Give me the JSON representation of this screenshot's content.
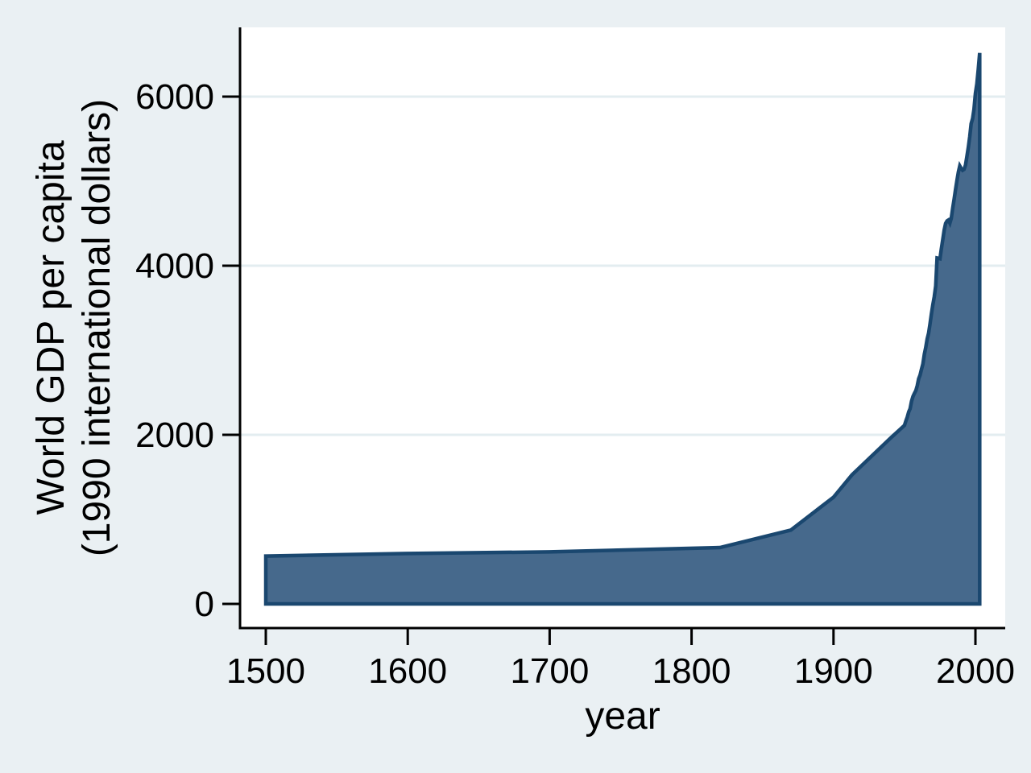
{
  "figure": {
    "background_color": "#eaf0f3",
    "plot_background_color": "#ffffff",
    "gridline_color": "#e3edf0",
    "axis_color": "#000000",
    "area_fill_color": "#46698c",
    "area_line_color": "#1a476f"
  },
  "chart_data": {
    "type": "area",
    "title": "",
    "xlabel": "year",
    "ylabel_lines": [
      "World GDP per capita",
      "(1990 international dollars)"
    ],
    "x_ticks": [
      1500,
      1600,
      1700,
      1800,
      1900,
      2000
    ],
    "y_ticks": [
      0,
      2000,
      4000,
      6000
    ],
    "xlim": [
      1482,
      2021
    ],
    "ylim": [
      -286,
      6819
    ],
    "grid": "horizontal-at-y-ticks",
    "legend": "none",
    "series": [
      {
        "name": "World GDP per capita (1990 international dollars)",
        "points": [
          [
            1500,
            566
          ],
          [
            1600,
            596
          ],
          [
            1700,
            615
          ],
          [
            1820,
            667
          ],
          [
            1870,
            873
          ],
          [
            1900,
            1262
          ],
          [
            1913,
            1526
          ],
          [
            1940,
            1958
          ],
          [
            1950,
            2111
          ],
          [
            1951,
            2165
          ],
          [
            1952,
            2210
          ],
          [
            1953,
            2271
          ],
          [
            1954,
            2309
          ],
          [
            1955,
            2397
          ],
          [
            1956,
            2454
          ],
          [
            1957,
            2490
          ],
          [
            1958,
            2522
          ],
          [
            1959,
            2581
          ],
          [
            1960,
            2662
          ],
          [
            1961,
            2707
          ],
          [
            1962,
            2773
          ],
          [
            1963,
            2838
          ],
          [
            1964,
            2953
          ],
          [
            1965,
            3031
          ],
          [
            1966,
            3133
          ],
          [
            1967,
            3203
          ],
          [
            1968,
            3310
          ],
          [
            1969,
            3432
          ],
          [
            1970,
            3536
          ],
          [
            1971,
            3632
          ],
          [
            1972,
            3760
          ],
          [
            1973,
            4091
          ],
          [
            1974,
            4088
          ],
          [
            1975,
            4083
          ],
          [
            1976,
            4200
          ],
          [
            1977,
            4310
          ],
          [
            1978,
            4420
          ],
          [
            1979,
            4500
          ],
          [
            1980,
            4530
          ],
          [
            1981,
            4540
          ],
          [
            1982,
            4505
          ],
          [
            1983,
            4560
          ],
          [
            1984,
            4680
          ],
          [
            1985,
            4790
          ],
          [
            1986,
            4900
          ],
          [
            1987,
            5010
          ],
          [
            1988,
            5110
          ],
          [
            1989,
            5180
          ],
          [
            1990,
            5150
          ],
          [
            1991,
            5130
          ],
          [
            1992,
            5140
          ],
          [
            1993,
            5190
          ],
          [
            1994,
            5290
          ],
          [
            1995,
            5400
          ],
          [
            1996,
            5530
          ],
          [
            1997,
            5680
          ],
          [
            1998,
            5740
          ],
          [
            1999,
            5850
          ],
          [
            2000,
            6038
          ],
          [
            2001,
            6151
          ],
          [
            2002,
            6318
          ],
          [
            2003,
            6516
          ]
        ]
      }
    ]
  }
}
